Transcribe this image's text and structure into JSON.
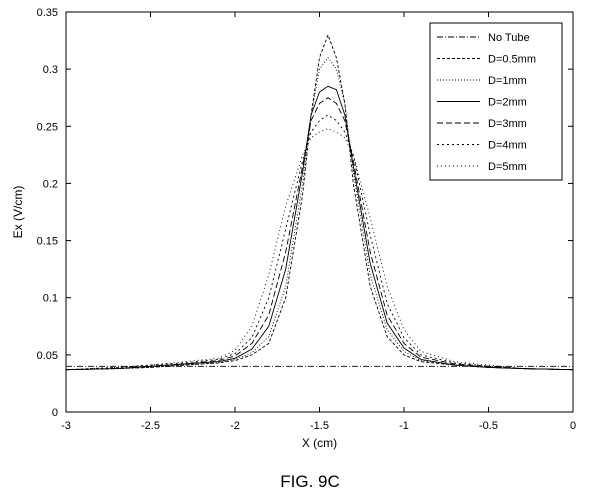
{
  "figure_caption": "FIG. 9C",
  "chart_data": {
    "type": "line",
    "title": "",
    "xlabel": "X (cm)",
    "ylabel": "Ex (V/cm)",
    "xlim": [
      -3,
      0
    ],
    "ylim": [
      0,
      0.35
    ],
    "xticks": [
      -3,
      -2.5,
      -2,
      -1.5,
      -1,
      -0.5,
      0
    ],
    "xtick_labels": [
      "-3",
      "-2.5",
      "-2",
      "-1.5",
      "-1",
      "-0.5",
      "0"
    ],
    "yticks": [
      0,
      0.05,
      0.1,
      0.15,
      0.2,
      0.25,
      0.3,
      0.35
    ],
    "ytick_labels": [
      "0",
      "0.05",
      "0.1",
      "0.15",
      "0.2",
      "0.25",
      "0.3",
      "0.35"
    ],
    "grid": false,
    "legend_position": "top-right",
    "series": [
      {
        "name": "No Tube",
        "dash": "6,2,1,2",
        "x": [
          -3,
          -2.5,
          -2,
          -1.5,
          -1,
          -0.5,
          0
        ],
        "values": [
          0.04,
          0.04,
          0.04,
          0.04,
          0.04,
          0.04,
          0.04
        ]
      },
      {
        "name": "D=0.5mm",
        "dash": "3,2",
        "x": [
          -3,
          -2.7,
          -2.5,
          -2.3,
          -2.1,
          -2.0,
          -1.9,
          -1.8,
          -1.7,
          -1.6,
          -1.55,
          -1.5,
          -1.45,
          -1.4,
          -1.35,
          -1.3,
          -1.2,
          -1.1,
          -1.0,
          -0.9,
          -0.7,
          -0.5,
          -0.3,
          0
        ],
        "values": [
          0.037,
          0.038,
          0.039,
          0.041,
          0.043,
          0.045,
          0.05,
          0.06,
          0.1,
          0.19,
          0.26,
          0.31,
          0.33,
          0.31,
          0.27,
          0.2,
          0.11,
          0.066,
          0.05,
          0.044,
          0.041,
          0.039,
          0.038,
          0.037
        ]
      },
      {
        "name": "D=1mm",
        "dash": "1,2",
        "x": [
          -3,
          -2.7,
          -2.5,
          -2.3,
          -2.1,
          -2.0,
          -1.9,
          -1.8,
          -1.7,
          -1.6,
          -1.55,
          -1.5,
          -1.45,
          -1.4,
          -1.35,
          -1.3,
          -1.2,
          -1.1,
          -1.0,
          -0.9,
          -0.7,
          -0.5,
          -0.3,
          0
        ],
        "values": [
          0.037,
          0.038,
          0.039,
          0.041,
          0.043,
          0.046,
          0.052,
          0.066,
          0.11,
          0.2,
          0.26,
          0.3,
          0.31,
          0.3,
          0.27,
          0.21,
          0.12,
          0.072,
          0.053,
          0.045,
          0.041,
          0.039,
          0.038,
          0.037
        ]
      },
      {
        "name": "D=2mm",
        "dash": "",
        "x": [
          -3,
          -2.7,
          -2.5,
          -2.3,
          -2.1,
          -2.0,
          -1.9,
          -1.8,
          -1.7,
          -1.6,
          -1.55,
          -1.5,
          -1.45,
          -1.4,
          -1.35,
          -1.3,
          -1.2,
          -1.1,
          -1.0,
          -0.9,
          -0.7,
          -0.5,
          -0.3,
          0
        ],
        "values": [
          0.037,
          0.038,
          0.04,
          0.042,
          0.044,
          0.047,
          0.055,
          0.075,
          0.125,
          0.21,
          0.26,
          0.28,
          0.285,
          0.282,
          0.26,
          0.215,
          0.13,
          0.078,
          0.056,
          0.046,
          0.041,
          0.039,
          0.038,
          0.037
        ]
      },
      {
        "name": "D=3mm",
        "dash": "6,3",
        "x": [
          -3,
          -2.7,
          -2.5,
          -2.3,
          -2.1,
          -2.0,
          -1.9,
          -1.8,
          -1.7,
          -1.6,
          -1.55,
          -1.5,
          -1.45,
          -1.4,
          -1.35,
          -1.3,
          -1.2,
          -1.1,
          -1.0,
          -0.9,
          -0.7,
          -0.5,
          -0.3,
          0
        ],
        "values": [
          0.037,
          0.038,
          0.04,
          0.042,
          0.045,
          0.049,
          0.06,
          0.085,
          0.14,
          0.215,
          0.255,
          0.27,
          0.275,
          0.27,
          0.255,
          0.22,
          0.14,
          0.085,
          0.06,
          0.048,
          0.042,
          0.04,
          0.038,
          0.037
        ]
      },
      {
        "name": "D=4mm",
        "dash": "2,3",
        "x": [
          -3,
          -2.7,
          -2.5,
          -2.3,
          -2.1,
          -2.0,
          -1.9,
          -1.8,
          -1.7,
          -1.6,
          -1.55,
          -1.5,
          -1.45,
          -1.4,
          -1.35,
          -1.3,
          -1.2,
          -1.1,
          -1.0,
          -0.9,
          -0.7,
          -0.5,
          -0.3,
          0
        ],
        "values": [
          0.037,
          0.039,
          0.041,
          0.043,
          0.046,
          0.051,
          0.065,
          0.1,
          0.16,
          0.22,
          0.245,
          0.255,
          0.26,
          0.255,
          0.245,
          0.225,
          0.155,
          0.095,
          0.065,
          0.05,
          0.043,
          0.04,
          0.038,
          0.037
        ]
      },
      {
        "name": "D=5mm",
        "dash": "1,3",
        "x": [
          -3,
          -2.7,
          -2.5,
          -2.3,
          -2.1,
          -2.0,
          -1.9,
          -1.8,
          -1.7,
          -1.6,
          -1.55,
          -1.5,
          -1.45,
          -1.4,
          -1.35,
          -1.3,
          -1.2,
          -1.1,
          -1.0,
          -0.9,
          -0.7,
          -0.5,
          -0.3,
          0
        ],
        "values": [
          0.037,
          0.039,
          0.041,
          0.044,
          0.047,
          0.054,
          0.075,
          0.12,
          0.18,
          0.225,
          0.24,
          0.245,
          0.248,
          0.245,
          0.24,
          0.225,
          0.17,
          0.11,
          0.072,
          0.053,
          0.044,
          0.041,
          0.038,
          0.037
        ]
      }
    ]
  }
}
